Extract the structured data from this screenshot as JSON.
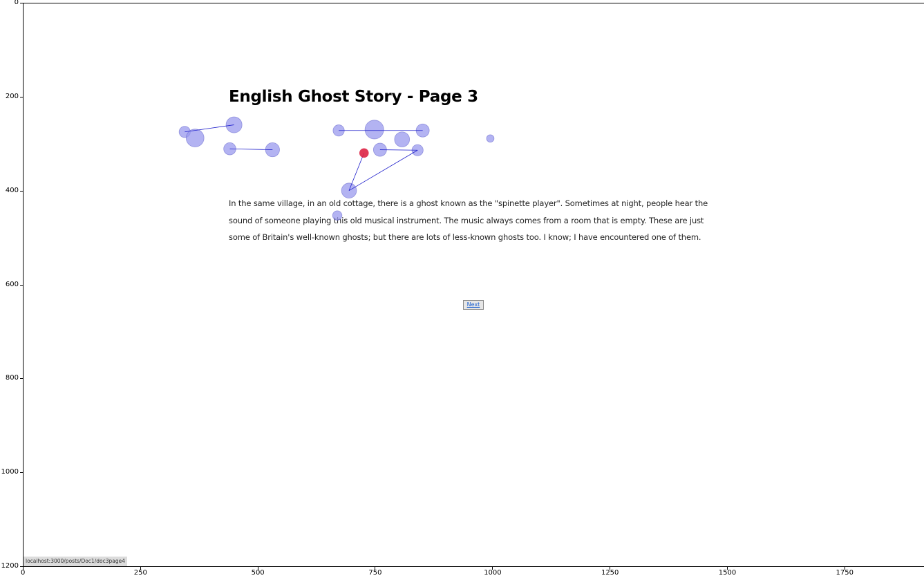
{
  "page": {
    "title": "English Ghost Story - Page 3",
    "body_text": "In the same village, in an old cottage, there is a ghost known as the \"spinette player\". Sometimes at night, people hear the sound of someone playing this old musical instrument. The music always comes from a room that is empty. These are just some of Britain's well-known ghosts; but there are lots of less-known ghosts too. I know; I have encountered one of them.",
    "next_label": "Next",
    "status_url": "localhost:3000/posts/Doc1/doc3page4"
  },
  "axes": {
    "x_ticks": [
      "0",
      "250",
      "500",
      "750",
      "1000",
      "1250",
      "1500",
      "1750"
    ],
    "y_ticks": [
      "0",
      "200",
      "400",
      "600",
      "800",
      "1000",
      "1200"
    ]
  },
  "colors": {
    "fixation": "#9999ee",
    "fixation_stroke": "#6666cc",
    "saccade": "#2222cc",
    "current_fixation": "#dd2244"
  },
  "chart_data": {
    "type": "scatter",
    "xlim": [
      0,
      1920
    ],
    "ylim": [
      1200,
      0
    ],
    "grid": false,
    "series": [
      {
        "points": [
          {
            "x": 345,
            "y": 275,
            "r": 12
          },
          {
            "x": 367,
            "y": 288,
            "r": 19
          },
          {
            "x": 450,
            "y": 260,
            "r": 17
          },
          {
            "x": 441,
            "y": 311,
            "r": 13
          },
          {
            "x": 532,
            "y": 313,
            "r": 15
          },
          {
            "x": 673,
            "y": 272,
            "r": 12
          },
          {
            "x": 749,
            "y": 270,
            "r": 20
          },
          {
            "x": 852,
            "y": 272,
            "r": 14
          },
          {
            "x": 761,
            "y": 313,
            "r": 14
          },
          {
            "x": 808,
            "y": 291,
            "r": 16
          },
          {
            "x": 841,
            "y": 314,
            "r": 12
          },
          {
            "x": 996,
            "y": 289,
            "r": 8
          },
          {
            "x": 695,
            "y": 400,
            "r": 16
          },
          {
            "x": 670,
            "y": 453,
            "r": 10
          }
        ]
      },
      {
        "points": [
          {
            "x": 727,
            "y": 320,
            "r": 10
          }
        ]
      }
    ],
    "saccades": [
      [
        [
          345,
          275
        ],
        [
          450,
          260
        ]
      ],
      [
        [
          441,
          311
        ],
        [
          532,
          313
        ]
      ],
      [
        [
          673,
          272
        ],
        [
          852,
          272
        ]
      ],
      [
        [
          761,
          313
        ],
        [
          841,
          314
        ]
      ],
      [
        [
          841,
          314
        ],
        [
          695,
          400
        ]
      ],
      [
        [
          695,
          400
        ],
        [
          727,
          320
        ]
      ]
    ]
  }
}
